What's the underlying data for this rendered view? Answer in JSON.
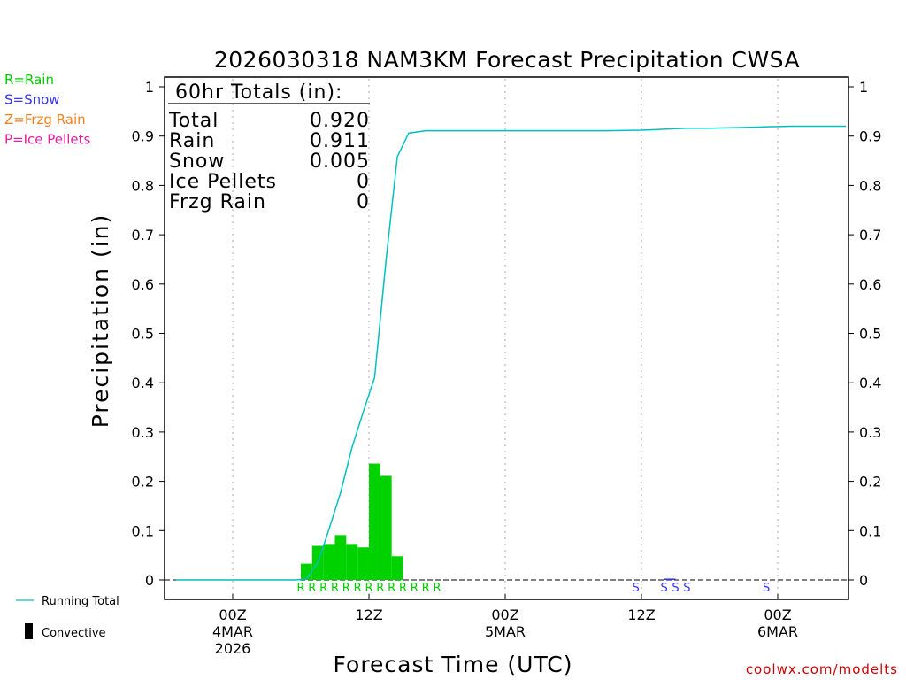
{
  "chart_data": {
    "type": "bar",
    "title": "2026030318 NAM3KM Forecast Precipitation CWSA",
    "xlabel": "Forecast Time (UTC)",
    "ylabel": "Precipitation (in)",
    "ylim": [
      0,
      1
    ],
    "y_ticks": [
      "0",
      "0.1",
      "0.2",
      "0.3",
      "0.4",
      "0.5",
      "0.6",
      "0.7",
      "0.8",
      "0.9",
      "1"
    ],
    "x_range_hours": [
      -6,
      54
    ],
    "x_ticks": [
      {
        "hour": 0,
        "lines": [
          "00Z",
          "4MAR",
          "2026"
        ]
      },
      {
        "hour": 12,
        "lines": [
          "12Z"
        ]
      },
      {
        "hour": 24,
        "lines": [
          "00Z",
          "5MAR"
        ]
      },
      {
        "hour": 36,
        "lines": [
          "12Z"
        ]
      },
      {
        "hour": 48,
        "lines": [
          "00Z",
          "6MAR"
        ]
      }
    ],
    "hourly_precip": {
      "start_hour": 6.5,
      "values": [
        0.033,
        0.069,
        0.073,
        0.091,
        0.073,
        0.066,
        0.236,
        0.211,
        0.048
      ],
      "color": "#00d200"
    },
    "late_precip": [
      {
        "hour": 38.5,
        "value": 0.001
      }
    ],
    "running_total": {
      "hours": [
        -5,
        5.5,
        6.5,
        7.5,
        8.5,
        9.5,
        10.5,
        11.5,
        12.5,
        13.5,
        14.5,
        15.5,
        17,
        24,
        33,
        36,
        37,
        38,
        40,
        42,
        44,
        46,
        47,
        49,
        54
      ],
      "values": [
        0,
        0,
        0.002,
        0.035,
        0.104,
        0.177,
        0.268,
        0.341,
        0.411,
        0.647,
        0.858,
        0.906,
        0.911,
        0.911,
        0.911,
        0.912,
        0.913,
        0.914,
        0.916,
        0.916,
        0.917,
        0.918,
        0.919,
        0.92,
        0.92
      ],
      "color": "#00c0c0"
    },
    "ptype_markers": [
      {
        "label": "R",
        "start_hour": 6,
        "count": 13,
        "color": "#00cc00"
      },
      {
        "label": "S",
        "hours": [
          35.5,
          38,
          39,
          40,
          47
        ],
        "color": "#3333ff"
      }
    ],
    "totals_box": {
      "heading": "60hr Totals (in):",
      "rows": [
        {
          "label": "Total",
          "value": "0.920"
        },
        {
          "label": "Rain",
          "value": "0.911"
        },
        {
          "label": "Snow",
          "value": "0.005"
        },
        {
          "label": "Ice Pellets",
          "value": "0"
        },
        {
          "label": "Frzg Rain",
          "value": "0"
        }
      ]
    }
  },
  "legend_top": [
    {
      "text": "R=Rain",
      "color": "#00cc00"
    },
    {
      "text": "S=Snow",
      "color": "#3333ff"
    },
    {
      "text": "Z=Frzg Rain",
      "color": "#f08020"
    },
    {
      "text": "P=Ice Pellets",
      "color": "#e020a0"
    }
  ],
  "legend_bottom": {
    "running_total": "Running Total",
    "convective": "Convective"
  },
  "credit": "coolwx.com/modelts",
  "colors": {
    "credit": "#cc0000",
    "grid": "#aaaaaa"
  }
}
